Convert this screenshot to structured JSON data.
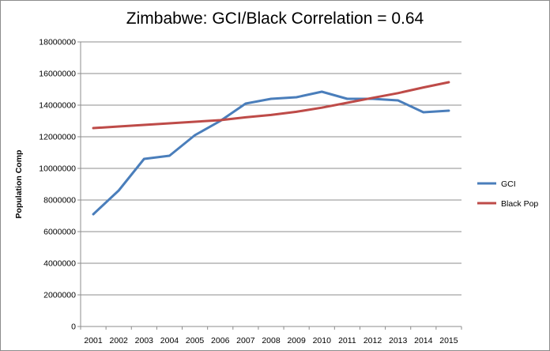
{
  "chart_data": {
    "type": "line",
    "title": "Zimbabwe: GCI/Black Correlation = 0.64",
    "xlabel": "",
    "ylabel": "Population Comp",
    "categories": [
      "2001",
      "2002",
      "2003",
      "2004",
      "2005",
      "2006",
      "2007",
      "2008",
      "2009",
      "2010",
      "2011",
      "2012",
      "2013",
      "2014",
      "2015"
    ],
    "ylim": [
      0,
      18000000
    ],
    "yticks": [
      0,
      2000000,
      4000000,
      6000000,
      8000000,
      10000000,
      12000000,
      14000000,
      16000000,
      18000000
    ],
    "ytick_labels": [
      "0",
      "2000000",
      "4000000",
      "6000000",
      "8000000",
      "10000000",
      "12000000",
      "14000000",
      "16000000",
      "18000000"
    ],
    "grid": true,
    "legend_position": "right",
    "series": [
      {
        "name": "GCI",
        "color": "#4a7ebb",
        "values": [
          7100000,
          8600000,
          10600000,
          10800000,
          12100000,
          13000000,
          14100000,
          14400000,
          14500000,
          14850000,
          14400000,
          14400000,
          14300000,
          13550000,
          13650000
        ]
      },
      {
        "name": "Black Pop",
        "color": "#be4b48",
        "values": [
          12550000,
          12650000,
          12750000,
          12850000,
          12950000,
          13050000,
          13230000,
          13380000,
          13580000,
          13840000,
          14150000,
          14460000,
          14760000,
          15120000,
          15450000
        ]
      }
    ]
  }
}
